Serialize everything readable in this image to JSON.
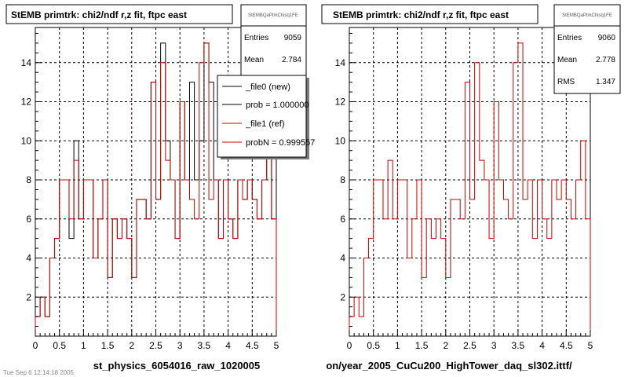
{
  "panels": [
    {
      "title": "StEMB primtrk: chi2/ndf r,z fit, ftpc east",
      "stats_name": "StEMBQaPtrkChisq1FE",
      "stats": [
        {
          "label": "Entries",
          "value": "9059"
        },
        {
          "label": "Mean",
          "value": "2.784"
        }
      ],
      "xtitle": "st_physics_6054016_raw_1020005",
      "legend": [
        {
          "label": "_file0 (new)",
          "color": "#000000"
        },
        {
          "label": "prob = 1.000000",
          "color": "#000000"
        },
        {
          "label": "_file1 (ref)",
          "color": "#cc0000"
        },
        {
          "label": "probN = 0.999557",
          "color": "#cc0000"
        }
      ]
    },
    {
      "title": "StEMB primtrk: chi2/ndf r,z fit, ftpc east",
      "stats_name": "StEMBQaPtrkChisq1FE",
      "stats": [
        {
          "label": "Entries",
          "value": "9060"
        },
        {
          "label": "Mean",
          "value": "2.778"
        },
        {
          "label": "RMS",
          "value": "1.347"
        }
      ],
      "xtitle": "on/year_2005_CuCu200_HighTower_daq_sl302.ittf/",
      "legend": []
    }
  ],
  "footer_text": "Tue Sep 6 12:14:18 2005",
  "chart_data": [
    {
      "type": "line",
      "title": "StEMB primtrk: chi2/ndf r,z fit, ftpc east",
      "xlim": [
        0,
        5
      ],
      "ylim": [
        0,
        15.8
      ],
      "x_ticks": [
        "0",
        "0.5",
        "1",
        "1.5",
        "2",
        "2.5",
        "3",
        "3.5",
        "4",
        "4.5",
        "5"
      ],
      "y_ticks": [
        "2",
        "4",
        "6",
        "8",
        "10",
        "12",
        "14"
      ],
      "grid": true,
      "bin_edges": [
        0,
        0.1,
        0.2,
        0.3,
        0.4,
        0.5,
        0.6,
        0.7,
        0.8,
        0.9,
        1.0,
        1.1,
        1.2,
        1.3,
        1.4,
        1.5,
        1.6,
        1.7,
        1.8,
        1.9,
        2.0,
        2.1,
        2.2,
        2.3,
        2.4,
        2.5,
        2.6,
        2.7,
        2.8,
        2.9,
        3.0,
        3.1,
        3.2,
        3.3,
        3.4,
        3.5,
        3.6,
        3.7,
        3.8,
        3.9,
        4.0,
        4.1,
        4.2,
        4.3,
        4.4,
        4.5,
        4.6,
        4.7,
        4.8,
        4.9,
        5.0
      ],
      "series": [
        {
          "name": "_file0 (new)",
          "color": "#000000",
          "values": [
            1,
            2,
            1,
            4,
            5,
            8,
            8,
            5,
            10,
            6,
            8,
            8,
            4,
            6,
            8,
            3,
            6,
            5,
            6,
            5,
            3,
            7,
            7,
            6,
            13,
            7,
            15,
            10,
            8,
            5,
            12,
            8,
            13,
            8,
            10,
            15,
            13,
            8,
            5,
            8,
            6,
            5,
            8,
            7,
            8,
            7,
            6,
            8,
            10,
            6
          ]
        },
        {
          "name": "_file1 (ref)",
          "color": "#cc0000",
          "values": [
            1,
            2,
            1,
            4,
            5,
            8,
            8,
            6,
            9,
            6,
            8,
            8,
            4,
            6,
            8,
            3,
            6,
            5,
            6,
            5,
            3,
            7,
            7,
            6,
            13,
            7,
            14,
            9,
            8,
            5,
            12,
            8,
            7,
            6,
            14,
            15,
            7,
            8,
            5,
            8,
            6,
            5,
            8,
            7,
            8,
            7,
            6,
            8,
            10,
            6
          ]
        }
      ]
    },
    {
      "type": "line",
      "title": "StEMB primtrk: chi2/ndf r,z fit, ftpc east",
      "xlim": [
        0,
        5
      ],
      "ylim": [
        0,
        15.8
      ],
      "x_ticks": [
        "0",
        "0.5",
        "1",
        "1.5",
        "2",
        "2.5",
        "3",
        "3.5",
        "4",
        "4.5",
        "5"
      ],
      "y_ticks": [
        "2",
        "4",
        "6",
        "8",
        "10",
        "12",
        "14"
      ],
      "grid": true,
      "bin_edges": [
        0,
        0.1,
        0.2,
        0.3,
        0.4,
        0.5,
        0.6,
        0.7,
        0.8,
        0.9,
        1.0,
        1.1,
        1.2,
        1.3,
        1.4,
        1.5,
        1.6,
        1.7,
        1.8,
        1.9,
        2.0,
        2.1,
        2.2,
        2.3,
        2.4,
        2.5,
        2.6,
        2.7,
        2.8,
        2.9,
        3.0,
        3.1,
        3.2,
        3.3,
        3.4,
        3.5,
        3.6,
        3.7,
        3.8,
        3.9,
        4.0,
        4.1,
        4.2,
        4.3,
        4.4,
        4.5,
        4.6,
        4.7,
        4.8,
        4.9,
        5.0
      ],
      "series": [
        {
          "name": "",
          "color": "#cc0000",
          "values": [
            1,
            2,
            1,
            4,
            5,
            8,
            8,
            6,
            9,
            6,
            8,
            8,
            4,
            6,
            8,
            3,
            6,
            5,
            6,
            5,
            3,
            7,
            7,
            6,
            13,
            7,
            14,
            9,
            8,
            5,
            12,
            8,
            7,
            6,
            14,
            15,
            7,
            8,
            5,
            8,
            6,
            5,
            8,
            7,
            8,
            7,
            6,
            8,
            10,
            6
          ]
        }
      ]
    }
  ]
}
